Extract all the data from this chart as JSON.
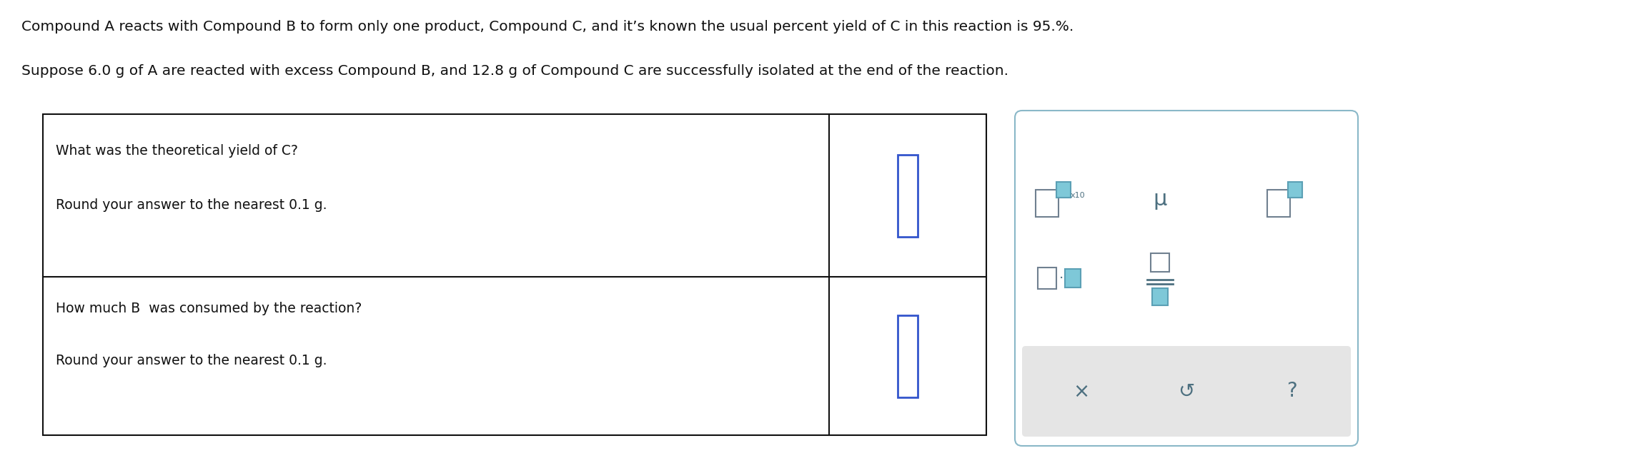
{
  "background_color": "#ffffff",
  "text_line1": "Compound A reacts with Compound B to form only one product, Compound C, and it’s known the usual percent yield of C in this reaction is 95.%.",
  "text_line2": "Suppose 6.0 g of A are reacted with excess Compound B, and 12.8 g of Compound C are successfully isolated at the end of the reaction.",
  "q1_line1": "What was the theoretical yield of C?",
  "q1_line2": "Round your answer to the nearest 0.1 g.",
  "q2_line1": "How much B  was consumed by the reaction?",
  "q2_line2": "Round your answer to the nearest 0.1 g.",
  "input_box_color": "#3355cc",
  "panel_border": "#8ab8c8",
  "panel_bottom_bg": "#e5e5e5",
  "symbol_color": "#4d7080",
  "teal_fill": "#7ec8d8",
  "teal_edge": "#5ba0b5",
  "gray_edge": "#708090",
  "main_font_size": 14.5,
  "table_font_size": 13.5
}
